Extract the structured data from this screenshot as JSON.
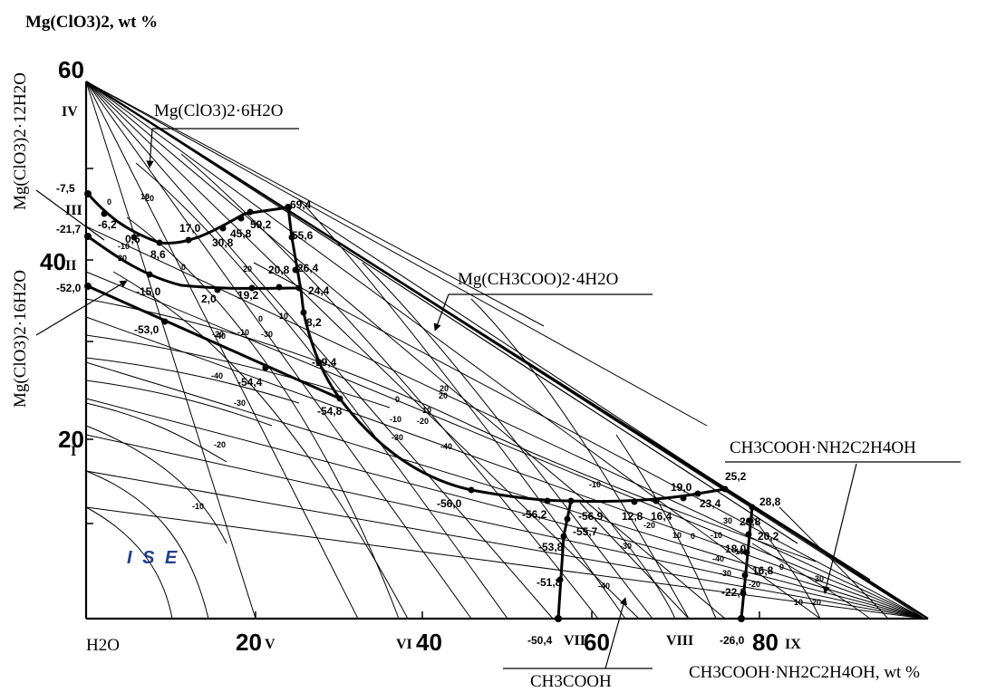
{
  "axes": {
    "y_title": "Mg(ClO3)2, wt %",
    "x_title": "CH3COOH·NH2C2H4OH, wt %",
    "origin_label": "H2O",
    "y_ticks": [
      "20",
      "40",
      "60"
    ],
    "x_ticks": [
      "20",
      "40",
      "60",
      "80"
    ]
  },
  "field_labels": {
    "mg_hexahydrate": "Mg(ClO3)2·6H2O",
    "mg_dodecahydrate": "Mg(ClO3)2·12H2O",
    "mg_hexadecahydrate": "Mg(ClO3)2·16H2O",
    "mg_acetate": "Mg(CH3COO)2·4H2O",
    "acetic_acid": "CH3COOH",
    "salt": "CH3COOH·NH2C2H4OH",
    "ice": "I S E"
  },
  "roman_labels": [
    "I",
    "II",
    "III",
    "IV",
    "V",
    "VI",
    "VII",
    "VIII",
    "IX"
  ],
  "point_labels": [
    "-7,5",
    "-6,2",
    "-21,7",
    "-52,0",
    "0,6",
    "8,6",
    "17,0",
    "30,8",
    "45,8",
    "59,2",
    "69,4",
    "55,6",
    "26,4",
    "24,4",
    "20,8",
    "19,2",
    "2,0",
    "8,2",
    "-15,0",
    "-53,0",
    "-54,4",
    "-19,4",
    "-54,8",
    "-56,0",
    "-56,2",
    "-56,9",
    "-55,7",
    "-53,8",
    "-51,8",
    "-50,4",
    "12,8",
    "16,4",
    "19,0",
    "23,4",
    "25,2",
    "28,8",
    "26,8",
    "20,2",
    "18,0",
    "16,8",
    "-22,8",
    "-26,0"
  ],
  "isotherm_labels": [
    "0",
    "10",
    "20",
    "-10",
    "0",
    "20",
    "10",
    "0",
    "-10",
    "-20",
    "-30",
    "-40",
    "-30",
    "-40",
    "-20",
    "-10",
    "0",
    "10",
    "20",
    "-10",
    "-20",
    "-30",
    "-40",
    "-10",
    "-20",
    "-30",
    "-40",
    "-10",
    "0",
    "10",
    "20",
    "30",
    "-40",
    "-30",
    "-20",
    "-10",
    "0",
    "10",
    "20",
    "30",
    "20"
  ]
}
